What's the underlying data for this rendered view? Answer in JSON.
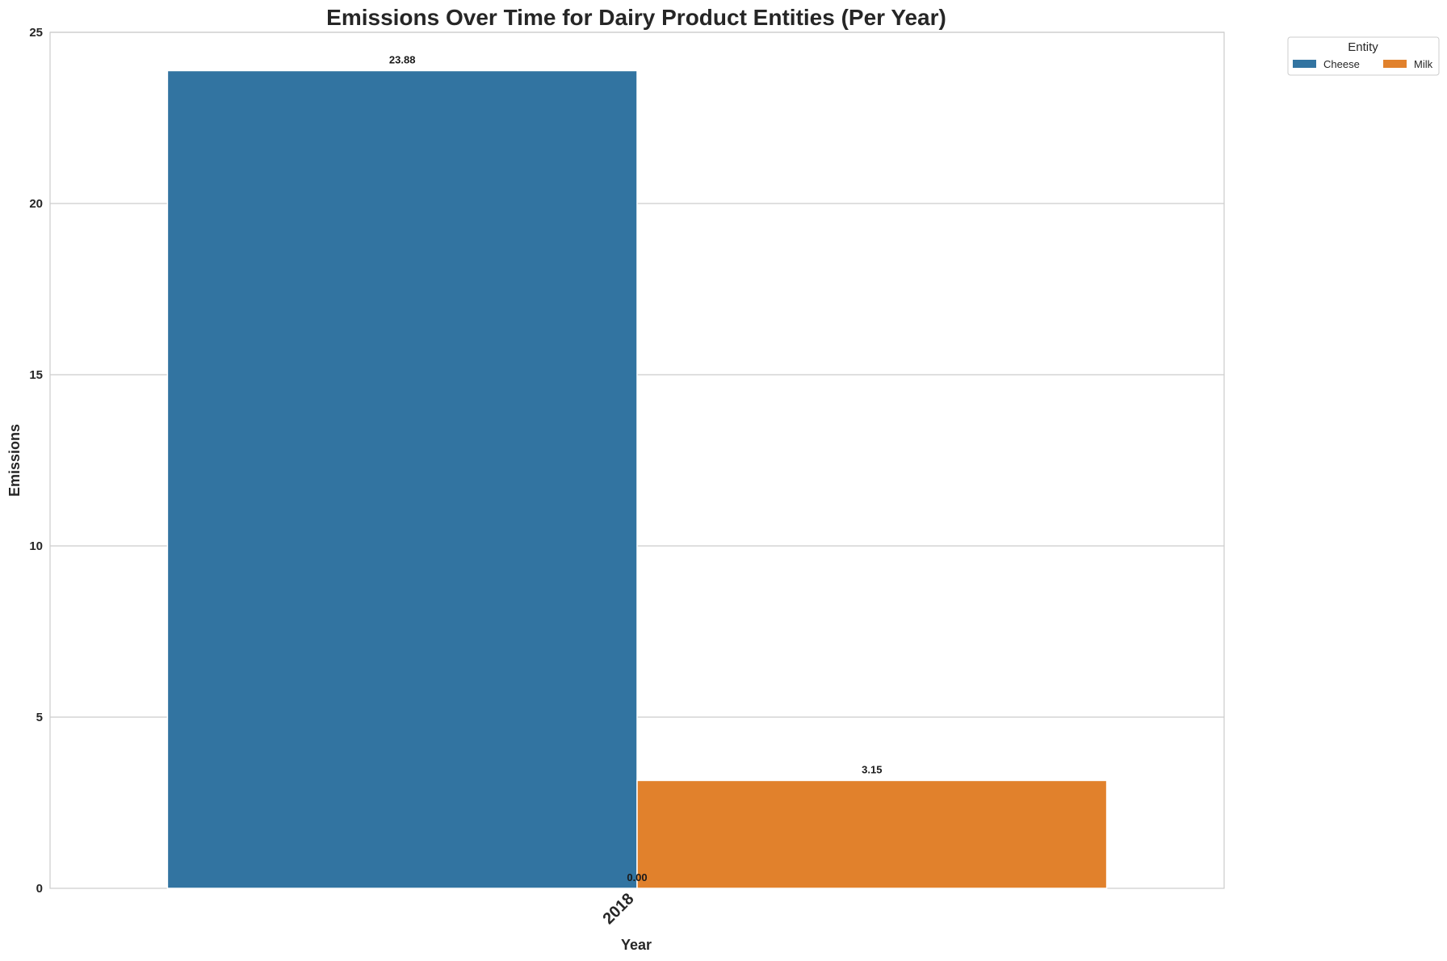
{
  "chart_data": {
    "type": "bar",
    "title": "Emissions Over Time for Dairy Product Entities (Per Year)",
    "xlabel": "Year",
    "ylabel": "Emissions",
    "categories": [
      "2018"
    ],
    "series": [
      {
        "name": "Cheese",
        "values": [
          23.88
        ],
        "color": "#3274a1",
        "labels": [
          "23.88"
        ]
      },
      {
        "name": "Milk",
        "values": [
          3.15
        ],
        "color": "#e1812c",
        "labels": [
          "3.15"
        ]
      }
    ],
    "extra_labels": [
      "0.00"
    ],
    "ylim": [
      0,
      25
    ],
    "yticks": [
      0,
      5,
      10,
      15,
      20,
      25
    ],
    "ytick_labels": [
      "0",
      "5",
      "10",
      "15",
      "20",
      "25"
    ],
    "grid": "horizontal",
    "legend": {
      "title": "Entity",
      "placement": "outside-top-right"
    }
  }
}
